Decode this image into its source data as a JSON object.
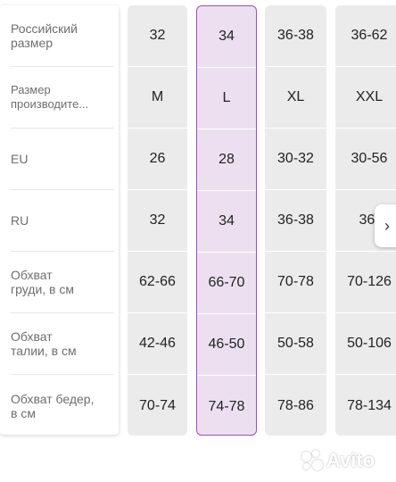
{
  "rows": [
    {
      "label": "Российский\nразмер"
    },
    {
      "label": "Размер\nпроизводите..."
    },
    {
      "label": "EU"
    },
    {
      "label": "RU"
    },
    {
      "label": "Обхват\nгруди, в см"
    },
    {
      "label": "Обхват\nталии, в см"
    },
    {
      "label": "Обхват бедер,\nв см"
    }
  ],
  "columns": [
    {
      "values": [
        "32",
        "M",
        "26",
        "32",
        "62-66",
        "42-46",
        "70-74"
      ]
    },
    {
      "values": [
        "34",
        "L",
        "28",
        "34",
        "66-70",
        "46-50",
        "74-78"
      ],
      "selected": true
    },
    {
      "values": [
        "36-38",
        "XL",
        "30-32",
        "36-38",
        "70-78",
        "50-58",
        "78-86"
      ]
    },
    {
      "values": [
        "36-62",
        "XXL",
        "30-56",
        "36-",
        "70-126",
        "50-106",
        "78-134"
      ]
    }
  ],
  "selected_color": "#a24dbf",
  "scroll_button": {
    "icon": "chevron-right-icon",
    "glyph": "›"
  },
  "watermark": {
    "text": "Avito"
  }
}
